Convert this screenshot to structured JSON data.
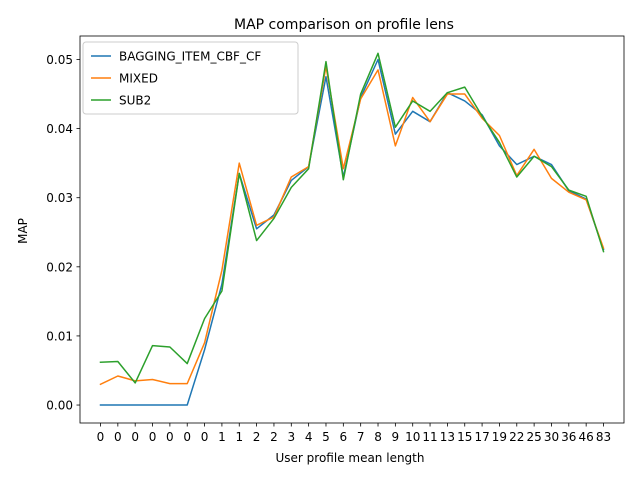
{
  "chart_data": {
    "type": "line",
    "title": "MAP comparison on profile lens",
    "xlabel": "User profile mean length",
    "ylabel": "MAP",
    "categories": [
      "0",
      "0",
      "0",
      "0",
      "0",
      "0",
      "0",
      "1",
      "1",
      "2",
      "2",
      "3",
      "4",
      "5",
      "6",
      "7",
      "8",
      "9",
      "10",
      "11",
      "13",
      "15",
      "17",
      "19",
      "22",
      "25",
      "30",
      "36",
      "46",
      "83"
    ],
    "ylim": [
      -0.0026,
      0.0534
    ],
    "yticks": [
      0.0,
      0.01,
      0.02,
      0.03,
      0.04,
      0.05
    ],
    "ytick_labels": [
      "0.00",
      "0.01",
      "0.02",
      "0.03",
      "0.04",
      "0.05"
    ],
    "grid": false,
    "legend": "top-left",
    "series": [
      {
        "name": "BAGGING_ITEM_CBF_CF",
        "color": "#1f77b4",
        "values": [
          0.0,
          0.0,
          0.0,
          0.0,
          0.0,
          0.0,
          0.008,
          0.0175,
          0.0335,
          0.0255,
          0.0275,
          0.0325,
          0.0345,
          0.0475,
          0.033,
          0.0445,
          0.05,
          0.0392,
          0.0425,
          0.041,
          0.0452,
          0.044,
          0.042,
          0.0375,
          0.0348,
          0.036,
          0.0348,
          0.031,
          0.0298,
          0.0225
        ]
      },
      {
        "name": "MIXED",
        "color": "#ff7f0e",
        "values": [
          0.003,
          0.0042,
          0.0035,
          0.0037,
          0.0031,
          0.0031,
          0.009,
          0.0195,
          0.035,
          0.026,
          0.0272,
          0.033,
          0.0345,
          0.049,
          0.0342,
          0.0443,
          0.0485,
          0.0375,
          0.0445,
          0.041,
          0.045,
          0.045,
          0.0415,
          0.039,
          0.0332,
          0.037,
          0.0328,
          0.0308,
          0.0297,
          0.0227
        ]
      },
      {
        "name": "SUB2",
        "color": "#2ca02c",
        "values": [
          0.0062,
          0.0063,
          0.0032,
          0.0086,
          0.0084,
          0.006,
          0.0125,
          0.0165,
          0.0335,
          0.0238,
          0.027,
          0.0315,
          0.0342,
          0.0497,
          0.0326,
          0.045,
          0.0509,
          0.0402,
          0.044,
          0.0425,
          0.0452,
          0.046,
          0.0418,
          0.038,
          0.033,
          0.036,
          0.0345,
          0.0311,
          0.0302,
          0.0222
        ]
      }
    ]
  }
}
